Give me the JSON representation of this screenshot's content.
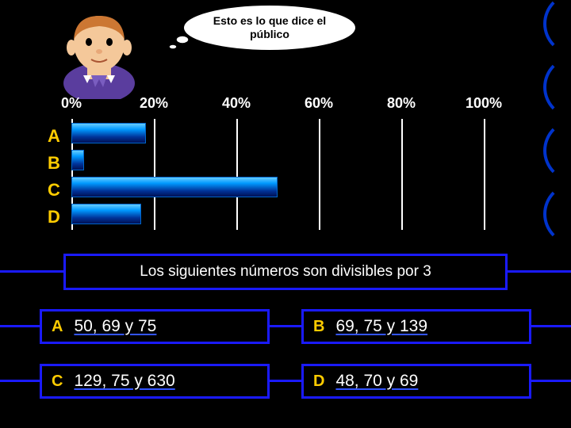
{
  "speech": {
    "text": "Esto es lo que dice el público"
  },
  "chart": {
    "type": "bar",
    "orientation": "horizontal",
    "categories": [
      "A",
      "B",
      "C",
      "D"
    ],
    "values": [
      18,
      3,
      50,
      17
    ],
    "xlim": [
      0,
      100
    ],
    "xtick_step": 20,
    "xtick_labels": [
      "0%",
      "20%",
      "40%",
      "60%",
      "80%",
      "100%"
    ],
    "bar_gradient": [
      "#66ccff",
      "#0099ff",
      "#003399",
      "#001155"
    ],
    "grid_color": "#ffffff",
    "xlabel_color": "#ffffff",
    "ylabel_color": "#ffcc00",
    "label_fontsize": 18,
    "background_color": "#000000"
  },
  "question": {
    "text": "Los siguientes números son divisibles por 3",
    "border_color": "#1a1aff",
    "text_color": "#ffffff"
  },
  "answers": {
    "a": {
      "letter": "A",
      "text": "50, 69 y 75"
    },
    "b": {
      "letter": "B",
      "text": "69, 75 y 139"
    },
    "c": {
      "letter": "C",
      "text": "129, 75 y 630"
    },
    "d": {
      "letter": "D",
      "text": "48, 70 y 69"
    },
    "letter_color": "#ffcc00",
    "text_color": "#ffffff",
    "border_color": "#1a1aff",
    "underline_color": "#3355ff"
  },
  "arcs": {
    "color": "#0033cc"
  }
}
